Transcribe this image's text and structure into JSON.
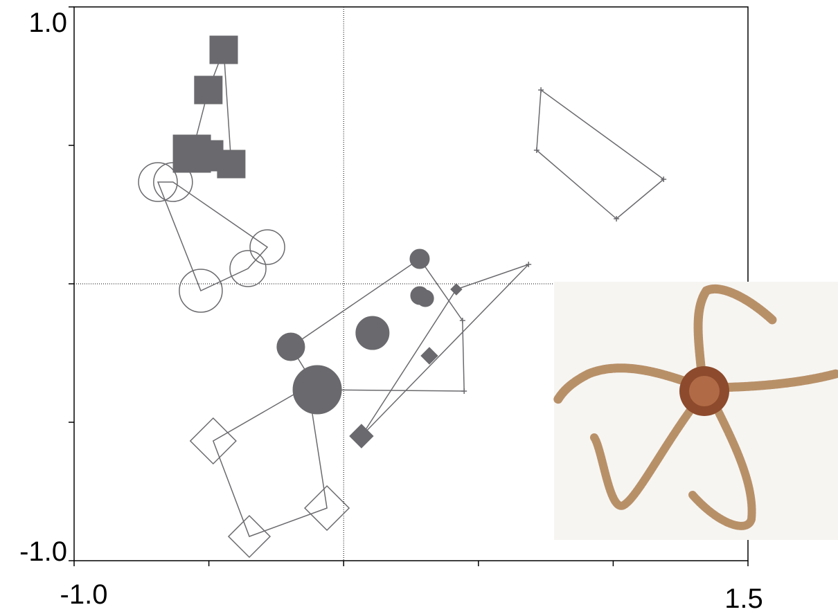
{
  "chart_data": {
    "type": "scatter",
    "xlim": [
      -1.0,
      1.5
    ],
    "ylim": [
      -1.0,
      1.0
    ],
    "xticks": [
      {
        "value": -1.0,
        "label": "-1.0"
      },
      {
        "value": -0.5,
        "label": null
      },
      {
        "value": 0,
        "label": null
      },
      {
        "value": 0.5,
        "label": null
      },
      {
        "value": 1.0,
        "label": null
      },
      {
        "value": 1.5,
        "label": "1.5"
      }
    ],
    "yticks": [
      {
        "value": 1.0,
        "label": "1.0"
      },
      {
        "value": 0.5,
        "label": null
      },
      {
        "value": 0,
        "label": null
      },
      {
        "value": -0.5,
        "label": null
      },
      {
        "value": -1.0,
        "label": "-1.0"
      }
    ],
    "zero_lines": true,
    "hulls": true,
    "color": "#6a6a6e",
    "series": [
      {
        "marker": "square",
        "filled": true,
        "x": [
          -0.445,
          -0.502,
          -0.563,
          -0.504,
          -0.417
        ],
        "y": [
          0.845,
          0.7,
          0.47,
          0.4625,
          0.4325
        ],
        "sizes": [
          20,
          20,
          27,
          22,
          20
        ]
      },
      {
        "marker": "circle",
        "filled": false,
        "x": [
          -0.689,
          -0.633,
          -0.283,
          -0.355,
          -0.53
        ],
        "y": [
          0.3675,
          0.3675,
          0.1325,
          0.055,
          -0.025
        ],
        "sizes": [
          28,
          28,
          25,
          26,
          31
        ]
      },
      {
        "marker": "circle",
        "filled": true,
        "x": [
          0.282,
          0.282,
          0.303,
          -0.196,
          0.107,
          -0.098,
          0.441,
          0.447
        ],
        "y": [
          0.09,
          -0.0425,
          -0.0525,
          -0.2275,
          -0.1775,
          -0.3825,
          -0.1325,
          -0.3875
        ],
        "sizes": [
          14,
          13,
          12,
          20,
          24,
          35,
          0,
          0
        ]
      },
      {
        "marker": "diamond",
        "filled": true,
        "x": [
          0.418,
          0.318,
          0.066,
          0.686
        ],
        "y": [
          -0.02,
          -0.26,
          -0.55,
          0.07
        ],
        "sizes": [
          8,
          12,
          17,
          0
        ]
      },
      {
        "marker": "diamond",
        "filled": false,
        "x": [
          -0.484,
          -0.35,
          -0.062,
          -0.132
        ],
        "y": [
          -0.5675,
          -0.9125,
          -0.81,
          -0.37
        ],
        "sizes": [
          33,
          30,
          32,
          6
        ]
      },
      {
        "marker": "cross",
        "filled": false,
        "x": [
          0.732,
          0.716,
          1.187,
          1.012
        ],
        "y": [
          0.7,
          0.4825,
          0.3775,
          0.235
        ],
        "sizes": [
          0,
          0,
          0,
          0
        ]
      }
    ]
  }
}
